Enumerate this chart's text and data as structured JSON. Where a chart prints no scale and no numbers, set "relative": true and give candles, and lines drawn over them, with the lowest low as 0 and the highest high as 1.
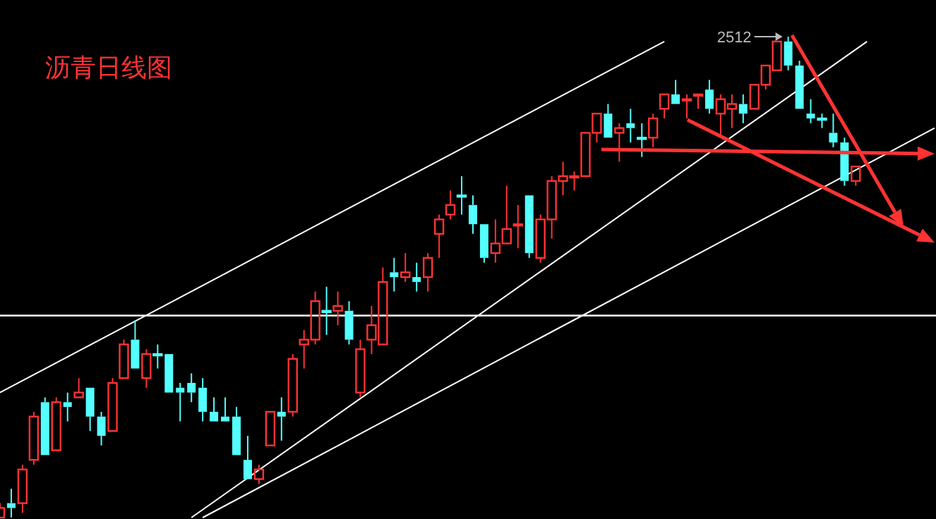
{
  "chart_data": {
    "type": "candlestick",
    "title": "沥青日线图",
    "relative": true,
    "categories": [
      null,
      null,
      null,
      null,
      null,
      null,
      null,
      null,
      null,
      null,
      null,
      null,
      null,
      null,
      null,
      null,
      null,
      null,
      null,
      null,
      null,
      null,
      null,
      null,
      null,
      null,
      null,
      null,
      null,
      null,
      null,
      null,
      null,
      null,
      null,
      null,
      null,
      null,
      null,
      null,
      null,
      null,
      null,
      null,
      null,
      null,
      null,
      null,
      null,
      null,
      null,
      null,
      null,
      null,
      null,
      null,
      null,
      null,
      null,
      null,
      null,
      null,
      null,
      null,
      null,
      null,
      null,
      null,
      null,
      null,
      null,
      null,
      null,
      null,
      null,
      null,
      null,
      null,
      null,
      null,
      null,
      null,
      null,
      null
    ],
    "ohlc": [
      [
        0,
        0.03,
        0,
        0.02
      ],
      [
        0.03,
        0.06,
        0,
        0.02
      ],
      [
        0.03,
        0.11,
        0.01,
        0.1
      ],
      [
        0.12,
        0.22,
        0.11,
        0.21
      ],
      [
        0.24,
        0.25,
        0.13,
        0.13
      ],
      [
        0.14,
        0.25,
        0.14,
        0.24
      ],
      [
        0.24,
        0.26,
        0.2,
        0.23
      ],
      [
        0.25,
        0.29,
        0.25,
        0.26
      ],
      [
        0.27,
        0.27,
        0.18,
        0.21
      ],
      [
        0.21,
        0.22,
        0.15,
        0.17
      ],
      [
        0.18,
        0.29,
        0.18,
        0.28
      ],
      [
        0.29,
        0.37,
        0.29,
        0.36
      ],
      [
        0.37,
        0.41,
        0.31,
        0.31
      ],
      [
        0.29,
        0.35,
        0.27,
        0.34
      ],
      [
        0.34,
        0.36,
        0.31,
        0.34
      ],
      [
        0.34,
        0.34,
        0.26,
        0.26
      ],
      [
        0.27,
        0.28,
        0.2,
        0.26
      ],
      [
        0.28,
        0.3,
        0.24,
        0.26
      ],
      [
        0.27,
        0.29,
        0.2,
        0.22
      ],
      [
        0.22,
        0.25,
        0.2,
        0.2
      ],
      [
        0.21,
        0.25,
        0.2,
        0.2
      ],
      [
        0.21,
        0.23,
        0.13,
        0.13
      ],
      [
        0.12,
        0.17,
        0.08,
        0.08
      ],
      [
        0.08,
        0.11,
        0.07,
        0.1
      ],
      [
        0.15,
        0.22,
        0.15,
        0.22
      ],
      [
        0.22,
        0.25,
        0.16,
        0.21
      ],
      [
        0.22,
        0.34,
        0.21,
        0.33
      ],
      [
        0.36,
        0.39,
        0.31,
        0.37
      ],
      [
        0.37,
        0.47,
        0.36,
        0.45
      ],
      [
        0.43,
        0.48,
        0.38,
        0.43
      ],
      [
        0.43,
        0.47,
        0.4,
        0.44
      ],
      [
        0.43,
        0.45,
        0.36,
        0.37
      ],
      [
        0.26,
        0.37,
        0.25,
        0.35
      ],
      [
        0.37,
        0.44,
        0.34,
        0.4
      ],
      [
        0.36,
        0.52,
        0.36,
        0.49
      ],
      [
        0.51,
        0.54,
        0.47,
        0.5
      ],
      [
        0.5,
        0.55,
        0.49,
        0.51
      ],
      [
        0.5,
        0.53,
        0.47,
        0.49
      ],
      [
        0.5,
        0.55,
        0.47,
        0.54
      ],
      [
        0.59,
        0.63,
        0.54,
        0.62
      ],
      [
        0.63,
        0.68,
        0.62,
        0.65
      ],
      [
        0.67,
        0.71,
        0.63,
        0.67
      ],
      [
        0.65,
        0.67,
        0.59,
        0.61
      ],
      [
        0.61,
        0.61,
        0.53,
        0.54
      ],
      [
        0.55,
        0.62,
        0.53,
        0.57
      ],
      [
        0.57,
        0.69,
        0.57,
        0.6
      ],
      [
        0.61,
        0.65,
        0.56,
        0.61
      ],
      [
        0.67,
        0.67,
        0.54,
        0.55
      ],
      [
        0.54,
        0.63,
        0.53,
        0.62
      ],
      [
        0.62,
        0.71,
        0.58,
        0.7
      ],
      [
        0.7,
        0.74,
        0.67,
        0.71
      ],
      [
        0.71,
        0.72,
        0.68,
        0.71
      ],
      [
        0.71,
        0.8,
        0.71,
        0.8
      ],
      [
        0.8,
        0.84,
        0.78,
        0.84
      ],
      [
        0.84,
        0.86,
        0.79,
        0.79
      ],
      [
        0.8,
        0.82,
        0.74,
        0.81
      ],
      [
        0.82,
        0.85,
        0.78,
        0.81
      ],
      [
        0.79,
        0.82,
        0.75,
        0.79
      ],
      [
        0.79,
        0.84,
        0.77,
        0.83
      ],
      [
        0.85,
        0.88,
        0.83,
        0.88
      ],
      [
        0.88,
        0.91,
        0.86,
        0.86
      ],
      [
        0.87,
        0.88,
        0.83,
        0.87
      ],
      [
        0.88,
        0.88,
        0.85,
        0.88
      ],
      [
        0.89,
        0.91,
        0.84,
        0.85
      ],
      [
        0.84,
        0.88,
        0.79,
        0.87
      ],
      [
        0.85,
        0.88,
        0.81,
        0.86
      ],
      [
        0.86,
        0.88,
        0.82,
        0.84
      ],
      [
        0.85,
        0.9,
        0.85,
        0.9
      ],
      [
        0.9,
        0.94,
        0.89,
        0.94
      ],
      [
        0.93,
        0.99,
        0.93,
        0.99
      ],
      [
        0.99,
        1,
        0.93,
        0.94
      ],
      [
        0.94,
        0.95,
        0.85,
        0.85
      ],
      [
        0.84,
        0.87,
        0.82,
        0.83
      ],
      [
        0.83,
        0.84,
        0.81,
        0.83
      ],
      [
        0.8,
        0.84,
        0.77,
        0.78
      ],
      [
        0.78,
        0.79,
        0.69,
        0.7
      ],
      [
        0.7,
        0.73,
        0.69,
        0.73
      ],
      null,
      null,
      null,
      null,
      null,
      null,
      null
    ],
    "colors": [
      "#ff3333",
      "#54ffff",
      "#ff3333",
      "#ff3333",
      "#54ffff",
      "#ff3333",
      "#54ffff",
      "#ff3333",
      "#54ffff",
      "#54ffff",
      "#ff3333",
      "#ff3333",
      "#54ffff",
      "#ff3333",
      "#54ffff",
      "#54ffff",
      "#54ffff",
      "#54ffff",
      "#54ffff",
      "#54ffff",
      "#54ffff",
      "#54ffff",
      "#54ffff",
      "#ff3333",
      "#ff3333",
      "#54ffff",
      "#ff3333",
      "#ff3333",
      "#ff3333",
      "#54ffff",
      "#ff3333",
      "#54ffff",
      "#ff3333",
      "#ff3333",
      "#ff3333",
      "#54ffff",
      "#ff3333",
      "#54ffff",
      "#ff3333",
      "#ff3333",
      "#ff3333",
      "#54ffff",
      "#54ffff",
      "#54ffff",
      "#ff3333",
      "#ff3333",
      "#ff3333",
      "#54ffff",
      "#ff3333",
      "#ff3333",
      "#ff3333",
      "#ff3333",
      "#ff3333",
      "#ff3333",
      "#54ffff",
      "#ff3333",
      "#54ffff",
      "#54ffff",
      "#ff3333",
      "#ff3333",
      "#54ffff",
      "#ff3333",
      "#ff3333",
      "#54ffff",
      "#ff3333",
      "#ff3333",
      "#54ffff",
      "#ff3333",
      "#ff3333",
      "#ff3333",
      "#54ffff",
      "#54ffff",
      "#54ffff",
      "#54ffff",
      "#54ffff",
      "#54ffff",
      "#ff3333",
      null,
      null,
      null,
      null,
      null,
      null,
      null
    ],
    "series": [
      {
        "type": "line",
        "color": "#ffffff",
        "values": [
          0.26,
          null,
          null,
          null,
          null,
          null,
          null,
          null,
          null,
          null,
          null,
          null,
          null,
          null,
          null,
          null,
          null,
          null,
          null,
          null,
          null,
          null,
          null,
          null,
          null,
          null,
          null,
          null,
          null,
          null,
          null,
          null,
          null,
          null,
          null,
          null,
          null,
          null,
          null,
          null,
          null,
          null,
          null,
          null,
          null,
          null,
          null,
          null,
          null,
          null,
          null,
          null,
          null,
          null,
          null,
          null,
          null,
          null,
          null,
          0.99,
          null,
          null,
          null,
          null,
          null,
          null,
          null,
          null,
          null,
          null,
          null,
          null,
          null,
          null,
          null,
          null,
          null,
          null,
          null,
          null,
          null,
          null,
          null,
          null
        ]
      },
      {
        "type": "line",
        "color": "#ffffff",
        "values": [
          null,
          null,
          null,
          null,
          null,
          null,
          null,
          null,
          null,
          null,
          null,
          null,
          null,
          null,
          null,
          null,
          null,
          0,
          null,
          null,
          null,
          null,
          null,
          null,
          null,
          null,
          null,
          null,
          null,
          null,
          null,
          null,
          null,
          null,
          null,
          null,
          null,
          null,
          null,
          null,
          null,
          null,
          null,
          null,
          null,
          null,
          null,
          null,
          null,
          null,
          null,
          null,
          null,
          null,
          null,
          null,
          null,
          null,
          null,
          null,
          null,
          null,
          null,
          null,
          null,
          null,
          null,
          null,
          null,
          null,
          null,
          null,
          null,
          null,
          null,
          null,
          null,
          0.99,
          null,
          null,
          null,
          null,
          null,
          null
        ]
      },
      {
        "type": "line",
        "color": "#ffffff",
        "values": [
          null,
          null,
          null,
          null,
          null,
          null,
          null,
          null,
          null,
          null,
          null,
          null,
          null,
          null,
          null,
          null,
          null,
          null,
          0,
          null,
          null,
          null,
          null,
          null,
          null,
          null,
          null,
          null,
          null,
          null,
          null,
          null,
          null,
          null,
          null,
          null,
          null,
          null,
          null,
          null,
          null,
          null,
          null,
          null,
          null,
          null,
          null,
          null,
          null,
          null,
          null,
          null,
          null,
          null,
          null,
          null,
          null,
          null,
          null,
          null,
          null,
          null,
          null,
          null,
          null,
          null,
          null,
          null,
          null,
          null,
          null,
          null,
          null,
          null,
          null,
          null,
          null,
          null,
          null,
          null,
          null,
          null,
          null,
          0.81
        ]
      }
    ],
    "ref_lines": [
      {
        "axis": "y",
        "value": 0.42,
        "color": "#ffffff"
      }
    ],
    "annotations": [
      "2512"
    ]
  }
}
